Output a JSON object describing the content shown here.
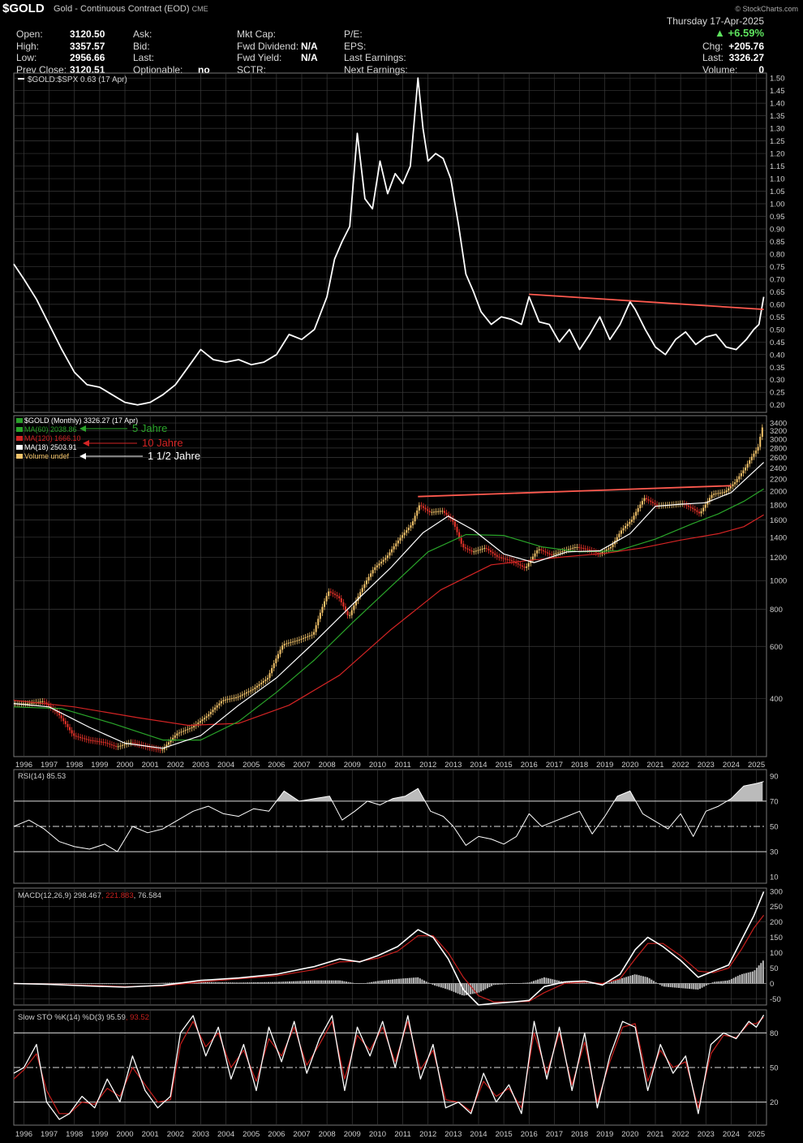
{
  "header": {
    "symbol": "$GOLD",
    "description": "Gold - Continuous Contract (EOD)",
    "exchange": "CME",
    "brand": "© StockCharts.com",
    "date": "Thursday 17-Apr-2025",
    "change_pct": "+6.59%",
    "fields": {
      "open_label": "Open:",
      "open": "3120.50",
      "high_label": "High:",
      "high": "3357.57",
      "low_label": "Low:",
      "low": "2956.66",
      "prev_label": "Prev Close:",
      "prev": "3120.51",
      "ask_label": "Ask:",
      "bid_label": "Bid:",
      "last_label": "Last:",
      "optionable_label": "Optionable:",
      "optionable": "no",
      "mktcap_label": "Mkt Cap:",
      "fwddiv_label": "Fwd Dividend:",
      "fwddiv": "N/A",
      "fwdyield_label": "Fwd Yield:",
      "fwdyield": "N/A",
      "sctr_label": "SCTR:",
      "pe_label": "P/E:",
      "eps_label": "EPS:",
      "lastearn_label": "Last Earnings:",
      "nextearn_label": "Next Earnings:",
      "chg_label": "Chg:",
      "chg": "+205.76",
      "lastp_label": "Last:",
      "lastp": "3326.27",
      "vol_label": "Volume:",
      "vol": "0"
    }
  },
  "colors": {
    "background": "#000000",
    "grid": "#3a3a3a",
    "price": "#ffffff",
    "up": "#f5c56b",
    "down": "#e8332a",
    "ma60": "#2aa52a",
    "ma120": "#d42424",
    "ma18": "#ffffff",
    "trend": "#ff5a4f",
    "signal": "#c8201e"
  },
  "chart_data": [
    {
      "type": "line",
      "title": "$GOLD:$SPX 0.63 (17 Apr)",
      "ylim": [
        0.17,
        1.52
      ],
      "yticks": [
        0.2,
        0.25,
        0.3,
        0.35,
        0.4,
        0.45,
        0.5,
        0.55,
        0.6,
        0.65,
        0.7,
        0.75,
        0.8,
        0.85,
        0.9,
        0.95,
        1.0,
        1.05,
        1.1,
        1.15,
        1.2,
        1.25,
        1.3,
        1.35,
        1.4,
        1.45,
        1.5
      ],
      "ytick_labels": [
        "0.20",
        "0.25",
        "0.30",
        "0.35",
        "0.40",
        "0.45",
        "0.50",
        "0.55",
        "0.60",
        "0.65",
        "0.70",
        "0.75",
        "0.80",
        "0.85",
        "0.90",
        "0.95",
        "1.00",
        "1.05",
        "1.10",
        "1.15",
        "1.20",
        "1.25",
        "1.30",
        "1.35",
        "1.40",
        "1.45",
        "1.50"
      ],
      "x": [
        1995.6,
        1996.0,
        1996.5,
        1997.0,
        1997.5,
        1998.0,
        1998.5,
        1999.0,
        1999.5,
        2000.0,
        2000.5,
        2001.0,
        2001.5,
        2002.0,
        2002.5,
        2003.0,
        2003.5,
        2004.0,
        2004.5,
        2005.0,
        2005.5,
        2006.0,
        2006.5,
        2007.0,
        2007.5,
        2008.0,
        2008.3,
        2008.6,
        2008.9,
        2009.2,
        2009.5,
        2009.8,
        2010.1,
        2010.4,
        2010.7,
        2011.0,
        2011.3,
        2011.6,
        2011.8,
        2012.0,
        2012.3,
        2012.6,
        2012.9,
        2013.2,
        2013.5,
        2013.8,
        2014.1,
        2014.5,
        2014.9,
        2015.3,
        2015.7,
        2016.0,
        2016.4,
        2016.8,
        2017.2,
        2017.6,
        2018.0,
        2018.4,
        2018.8,
        2019.2,
        2019.6,
        2020.0,
        2020.2,
        2020.6,
        2021.0,
        2021.4,
        2021.8,
        2022.2,
        2022.6,
        2023.0,
        2023.4,
        2023.8,
        2024.2,
        2024.6,
        2024.9,
        2025.1,
        2025.29
      ],
      "y": [
        0.76,
        0.7,
        0.62,
        0.52,
        0.42,
        0.33,
        0.28,
        0.27,
        0.24,
        0.21,
        0.2,
        0.21,
        0.24,
        0.28,
        0.35,
        0.42,
        0.38,
        0.37,
        0.38,
        0.36,
        0.37,
        0.4,
        0.48,
        0.46,
        0.5,
        0.63,
        0.78,
        0.85,
        0.91,
        1.28,
        1.02,
        0.98,
        1.17,
        1.04,
        1.12,
        1.08,
        1.15,
        1.5,
        1.3,
        1.17,
        1.2,
        1.18,
        1.1,
        0.92,
        0.72,
        0.65,
        0.57,
        0.52,
        0.55,
        0.54,
        0.52,
        0.63,
        0.53,
        0.52,
        0.45,
        0.5,
        0.42,
        0.48,
        0.55,
        0.46,
        0.52,
        0.61,
        0.58,
        0.5,
        0.43,
        0.4,
        0.46,
        0.49,
        0.44,
        0.47,
        0.48,
        0.43,
        0.42,
        0.46,
        0.5,
        0.52,
        0.63
      ],
      "trendline": {
        "x": [
          2016.0,
          2025.29
        ],
        "y": [
          0.64,
          0.58
        ]
      },
      "xlim": [
        1995.6,
        2025.4
      ]
    },
    {
      "type": "line",
      "title": "$GOLD (Monthly) 3326.27 (17 Apr)",
      "scale": "log",
      "ylim": [
        255,
        3600
      ],
      "yticks": [
        400,
        600,
        800,
        1000,
        1200,
        1400,
        1600,
        1800,
        2000,
        2200,
        2400,
        2600,
        2800,
        3000,
        3200,
        3400
      ],
      "ytick_labels": [
        "400",
        "600",
        "800",
        "1000",
        "1200",
        "1400",
        "1600",
        "1800",
        "2000",
        "2200",
        "2400",
        "2600",
        "2800",
        "3000",
        "3200",
        "3400"
      ],
      "legend": [
        {
          "label": "$GOLD (Monthly) 3326.27 (17 Apr)",
          "color": "#ffffff"
        },
        {
          "label": "MA(60) 2038.86",
          "color": "#2aa52a"
        },
        {
          "label": "MA(120) 1666.10",
          "color": "#d42424"
        },
        {
          "label": "MA(18) 2503.91",
          "color": "#ffffff"
        },
        {
          "label": "Volume undef",
          "color": "#f5c56b"
        }
      ],
      "annotations": [
        {
          "text": "5 Jahre",
          "color": "#2aa52a"
        },
        {
          "text": "10 Jahre",
          "color": "#d42424"
        },
        {
          "text": "1 1/2 Jahre",
          "color": "#ffffff"
        }
      ],
      "x": [
        1995.6,
        1996.2,
        1996.8,
        1997.4,
        1998.0,
        1998.6,
        1999.2,
        1999.7,
        2000.3,
        2000.9,
        2001.5,
        2002.1,
        2002.7,
        2003.3,
        2003.9,
        2004.5,
        2005.1,
        2005.7,
        2006.3,
        2006.9,
        2007.5,
        2008.1,
        2008.5,
        2008.9,
        2009.4,
        2009.9,
        2010.4,
        2010.9,
        2011.4,
        2011.7,
        2012.1,
        2012.6,
        2013.0,
        2013.4,
        2013.8,
        2014.3,
        2014.8,
        2015.3,
        2015.9,
        2016.4,
        2016.9,
        2017.4,
        2017.9,
        2018.4,
        2018.8,
        2019.3,
        2019.7,
        2020.1,
        2020.6,
        2021.1,
        2021.6,
        2022.1,
        2022.5,
        2022.8,
        2023.3,
        2023.8,
        2024.2,
        2024.6,
        2024.9,
        2025.1,
        2025.29
      ],
      "y": [
        385,
        385,
        392,
        355,
        300,
        290,
        285,
        275,
        285,
        275,
        268,
        305,
        320,
        350,
        395,
        405,
        430,
        470,
        610,
        630,
        660,
        920,
        880,
        750,
        930,
        1100,
        1200,
        1380,
        1550,
        1800,
        1700,
        1720,
        1600,
        1300,
        1250,
        1290,
        1200,
        1170,
        1100,
        1280,
        1220,
        1260,
        1300,
        1270,
        1230,
        1300,
        1480,
        1600,
        1900,
        1790,
        1800,
        1820,
        1750,
        1680,
        1960,
        1990,
        2150,
        2400,
        2650,
        2800,
        3326
      ],
      "ma18": {
        "x": [
          1995.6,
          1997.0,
          1998.6,
          2000.0,
          2001.5,
          2003.0,
          2004.5,
          2006.0,
          2007.5,
          2009.0,
          2010.5,
          2011.8,
          2012.8,
          2013.8,
          2015.0,
          2016.2,
          2017.5,
          2018.8,
          2020.0,
          2021.0,
          2022.0,
          2023.0,
          2024.0,
          2024.7,
          2025.29
        ],
        "y": [
          385,
          375,
          320,
          283,
          272,
          300,
          380,
          470,
          620,
          830,
          1100,
          1450,
          1650,
          1480,
          1230,
          1150,
          1250,
          1260,
          1440,
          1780,
          1810,
          1830,
          1980,
          2250,
          2504
        ]
      },
      "ma60": {
        "x": [
          1995.6,
          1997.5,
          1999.5,
          2001.5,
          2003.0,
          2004.5,
          2006.0,
          2007.5,
          2009.0,
          2010.5,
          2012.0,
          2013.5,
          2015.0,
          2016.5,
          2018.0,
          2019.5,
          2021.0,
          2022.5,
          2023.5,
          2024.5,
          2025.29
        ],
        "y": [
          375,
          370,
          330,
          290,
          290,
          335,
          420,
          540,
          720,
          950,
          1250,
          1430,
          1420,
          1300,
          1250,
          1260,
          1380,
          1560,
          1680,
          1850,
          2039
        ]
      },
      "ma120": {
        "x": [
          1995.6,
          1998.0,
          2000.5,
          2002.5,
          2004.5,
          2006.5,
          2008.5,
          2010.5,
          2012.5,
          2014.5,
          2016.0,
          2017.5,
          2019.0,
          2020.5,
          2022.0,
          2023.5,
          2024.5,
          2025.29
        ],
        "y": [
          395,
          375,
          345,
          325,
          330,
          380,
          480,
          680,
          930,
          1130,
          1170,
          1205,
          1235,
          1290,
          1370,
          1440,
          1520,
          1666
        ]
      },
      "trendline": {
        "x": [
          2011.6,
          2024.0
        ],
        "y": [
          1920,
          2090
        ]
      },
      "xlim": [
        1995.6,
        2025.4
      ]
    },
    {
      "type": "line",
      "title": "RSI(14) 85.53",
      "ylim": [
        5,
        95
      ],
      "yticks": [
        10,
        30,
        50,
        70,
        90
      ],
      "ytick_labels": [
        "10",
        "30",
        "50",
        "70",
        "90"
      ],
      "levels": [
        30,
        50,
        70
      ],
      "x": [
        1995.6,
        1996.2,
        1996.8,
        1997.4,
        1998.0,
        1998.6,
        1999.2,
        1999.7,
        2000.3,
        2000.9,
        2001.5,
        2002.1,
        2002.7,
        2003.3,
        2003.9,
        2004.5,
        2005.1,
        2005.7,
        2006.3,
        2006.9,
        2007.5,
        2008.1,
        2008.6,
        2009.1,
        2009.6,
        2010.1,
        2010.6,
        2011.1,
        2011.6,
        2012.1,
        2012.6,
        2013.0,
        2013.5,
        2014.0,
        2014.5,
        2015.0,
        2015.5,
        2016.0,
        2016.5,
        2017.0,
        2017.5,
        2018.0,
        2018.5,
        2019.0,
        2019.5,
        2020.0,
        2020.5,
        2021.0,
        2021.5,
        2022.0,
        2022.5,
        2023.0,
        2023.5,
        2024.0,
        2024.5,
        2025.0,
        2025.29
      ],
      "y": [
        50,
        55,
        48,
        38,
        34,
        32,
        36,
        30,
        50,
        45,
        48,
        55,
        62,
        66,
        60,
        58,
        64,
        62,
        78,
        70,
        72,
        74,
        55,
        62,
        70,
        67,
        72,
        74,
        80,
        62,
        58,
        50,
        35,
        42,
        40,
        36,
        42,
        60,
        50,
        54,
        58,
        62,
        44,
        58,
        74,
        78,
        60,
        54,
        48,
        60,
        42,
        62,
        66,
        72,
        82,
        84,
        85.53
      ],
      "xlim": [
        1995.6,
        2025.4
      ]
    },
    {
      "type": "line",
      "title": "MACD(12,26,9) 298.467, 221.883, 76.584",
      "legend": [
        {
          "label": "MACD(12,26,9) 298.467",
          "color": "#ffffff"
        },
        {
          "label": "221.883",
          "color": "#c8201e"
        },
        {
          "label": "76.584",
          "color": "#ffffff"
        }
      ],
      "ylim": [
        -70,
        310
      ],
      "yticks": [
        -50,
        0,
        50,
        100,
        150,
        200,
        250,
        300
      ],
      "ytick_labels": [
        "-50",
        "0",
        "50",
        "100",
        "150",
        "200",
        "250",
        "300"
      ],
      "x": [
        1995.6,
        1997.0,
        1998.5,
        2000.0,
        2001.5,
        2003.0,
        2004.5,
        2006.0,
        2007.5,
        2008.5,
        2009.3,
        2010.0,
        2010.8,
        2011.6,
        2012.2,
        2012.8,
        2013.4,
        2014.0,
        2014.6,
        2015.4,
        2016.0,
        2016.6,
        2017.4,
        2018.2,
        2018.9,
        2019.6,
        2020.2,
        2020.7,
        2021.3,
        2022.0,
        2022.7,
        2023.3,
        2023.9,
        2024.4,
        2024.9,
        2025.29
      ],
      "macd": [
        0,
        -3,
        -8,
        -12,
        -6,
        10,
        18,
        30,
        55,
        80,
        70,
        90,
        120,
        175,
        150,
        80,
        -20,
        -70,
        -65,
        -60,
        -55,
        -10,
        5,
        8,
        -5,
        30,
        110,
        150,
        120,
        75,
        20,
        40,
        60,
        140,
        220,
        298.467
      ],
      "signal": [
        0,
        -2,
        -6,
        -10,
        -8,
        5,
        15,
        25,
        45,
        70,
        72,
        82,
        105,
        155,
        155,
        100,
        20,
        -40,
        -60,
        -60,
        -58,
        -30,
        0,
        5,
        0,
        15,
        80,
        130,
        130,
        90,
        40,
        35,
        50,
        110,
        180,
        221.883
      ],
      "xlim": [
        1995.6,
        2025.4
      ]
    },
    {
      "type": "line",
      "title": "Slow STO %K(14) %D(3) 95.59, 93.52",
      "legend": [
        {
          "label": "Slow STO %K(14) %D(3) 95.59",
          "color": "#ffffff"
        },
        {
          "label": "93.52",
          "color": "#c8201e"
        }
      ],
      "ylim": [
        0,
        100
      ],
      "yticks": [
        20,
        50,
        80
      ],
      "ytick_labels": [
        "20",
        "50",
        "80"
      ],
      "levels": [
        20,
        50,
        80
      ],
      "x": [
        1995.6,
        1996.0,
        1996.5,
        1996.9,
        1997.4,
        1997.8,
        1998.3,
        1998.8,
        1999.3,
        1999.8,
        2000.3,
        2000.8,
        2001.3,
        2001.8,
        2002.2,
        2002.7,
        2003.2,
        2003.7,
        2004.2,
        2004.7,
        2005.2,
        2005.7,
        2006.2,
        2006.7,
        2007.2,
        2007.7,
        2008.2,
        2008.7,
        2009.2,
        2009.7,
        2010.2,
        2010.7,
        2011.2,
        2011.7,
        2012.2,
        2012.7,
        2013.2,
        2013.7,
        2014.2,
        2014.7,
        2015.2,
        2015.7,
        2016.2,
        2016.7,
        2017.2,
        2017.7,
        2018.2,
        2018.7,
        2019.2,
        2019.7,
        2020.2,
        2020.7,
        2021.2,
        2021.7,
        2022.2,
        2022.7,
        2023.2,
        2023.7,
        2024.2,
        2024.7,
        2025.0,
        2025.29
      ],
      "k": [
        45,
        50,
        70,
        20,
        5,
        10,
        25,
        15,
        40,
        20,
        60,
        30,
        15,
        25,
        80,
        95,
        60,
        85,
        40,
        70,
        30,
        85,
        55,
        90,
        45,
        75,
        95,
        30,
        85,
        60,
        90,
        50,
        95,
        40,
        70,
        15,
        20,
        10,
        45,
        20,
        35,
        10,
        90,
        40,
        85,
        30,
        80,
        15,
        60,
        90,
        85,
        30,
        70,
        45,
        60,
        10,
        70,
        80,
        75,
        90,
        85,
        95.59
      ],
      "d": [
        40,
        48,
        62,
        30,
        10,
        10,
        20,
        18,
        32,
        25,
        50,
        35,
        20,
        22,
        70,
        90,
        68,
        80,
        50,
        65,
        38,
        75,
        60,
        85,
        52,
        70,
        90,
        40,
        78,
        65,
        85,
        55,
        90,
        48,
        65,
        22,
        20,
        12,
        38,
        25,
        32,
        15,
        80,
        45,
        80,
        35,
        72,
        20,
        55,
        85,
        88,
        38,
        65,
        50,
        55,
        15,
        62,
        78,
        76,
        88,
        88,
        93.52
      ],
      "xlim": [
        1995.6,
        2025.4
      ]
    }
  ],
  "x_axis": {
    "years": [
      1996,
      1997,
      1998,
      1999,
      2000,
      2001,
      2002,
      2003,
      2004,
      2005,
      2006,
      2007,
      2008,
      2009,
      2010,
      2011,
      2012,
      2013,
      2014,
      2015,
      2016,
      2017,
      2018,
      2019,
      2020,
      2021,
      2022,
      2023,
      2024,
      2025
    ],
    "labels": [
      "1996",
      "1997",
      "1998",
      "1999",
      "2000",
      "2001",
      "2002",
      "2003",
      "2004",
      "2005",
      "2006",
      "2007",
      "2008",
      "2009",
      "2010",
      "2011",
      "2012",
      "2013",
      "2014",
      "2015",
      "2016",
      "2017",
      "2018",
      "2019",
      "2020",
      "2021",
      "2022",
      "2023",
      "2024",
      "2025"
    ]
  }
}
